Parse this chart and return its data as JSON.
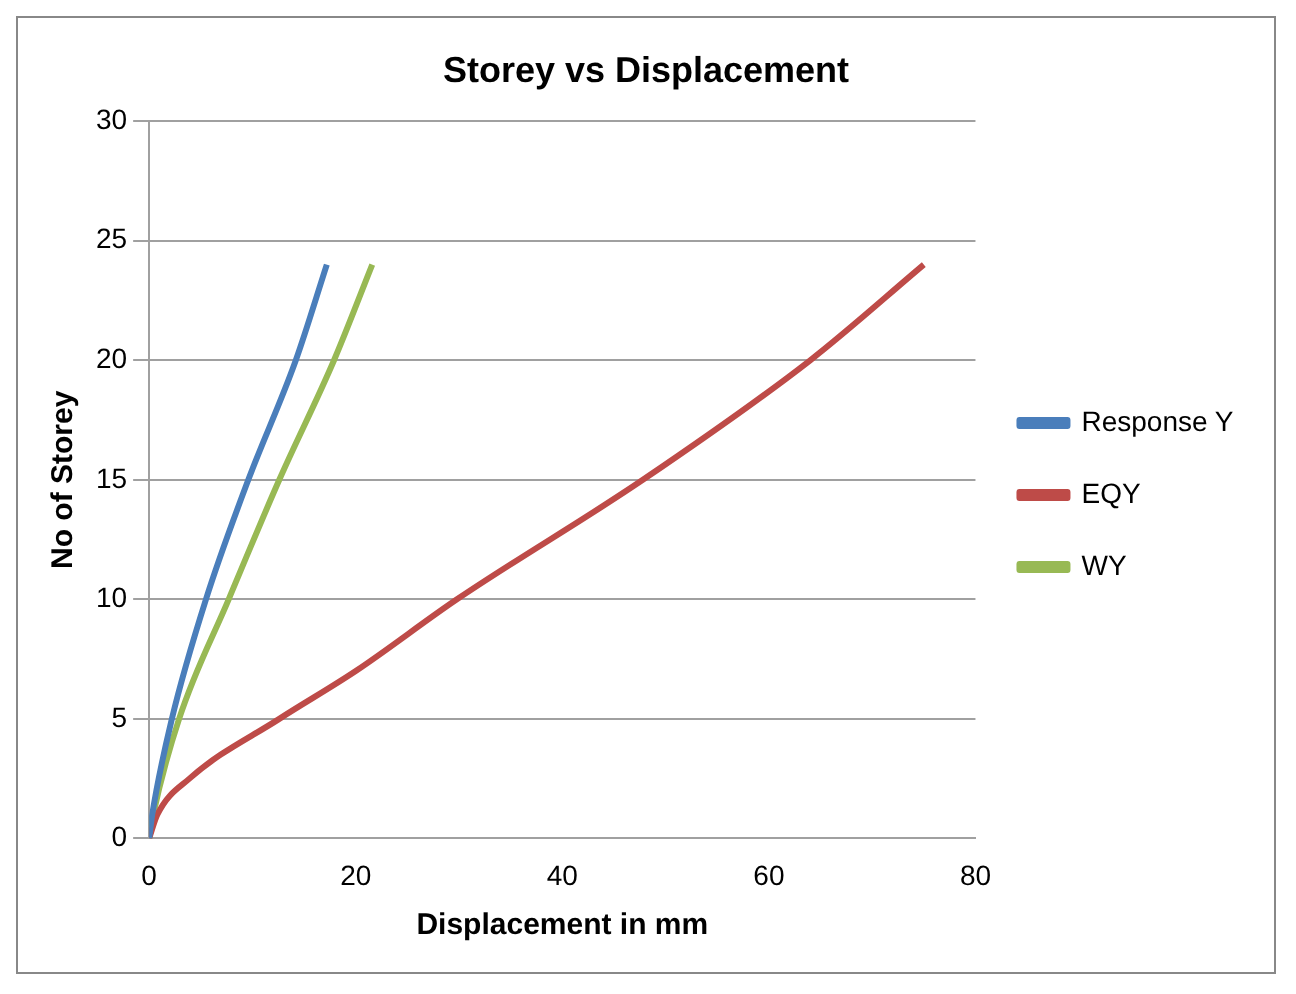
{
  "chart_data": {
    "type": "line",
    "title": "Storey vs Displacement",
    "xlabel": "Displacement in mm",
    "ylabel": "No of Storey",
    "xlim": [
      0,
      80
    ],
    "xticks": [
      0,
      20,
      40,
      60,
      80
    ],
    "ylim": [
      0,
      30
    ],
    "yticks": [
      0,
      5,
      10,
      15,
      20,
      25,
      30
    ],
    "grid": "y",
    "legend": "right",
    "marker": "none",
    "line_style": "solid",
    "series": [
      {
        "name": "Response Y",
        "color": "#4a7ebb",
        "x": [
          0,
          0.3,
          2.2,
          5.5,
          9.6,
          14.2,
          17.2
        ],
        "values": [
          0,
          1,
          5,
          10,
          15,
          20,
          24
        ]
      },
      {
        "name": "EQY",
        "color": "#be4b48",
        "x": [
          0,
          0.8,
          3.9,
          12.6,
          20,
          29.8,
          47.8,
          64,
          75
        ],
        "values": [
          0,
          1,
          2.5,
          5,
          7,
          10,
          15,
          20,
          24
        ]
      },
      {
        "name": "WY",
        "color": "#98b954",
        "x": [
          0,
          0.4,
          2.9,
          7.7,
          12.6,
          17.9,
          21.6
        ],
        "values": [
          0,
          1,
          5,
          10,
          15,
          20,
          24
        ]
      }
    ]
  }
}
